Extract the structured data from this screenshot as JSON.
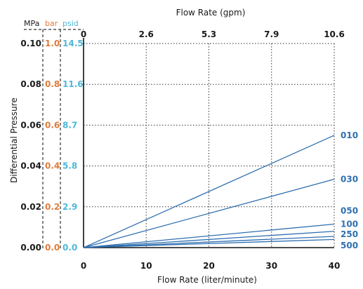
{
  "chart_data": {
    "type": "line",
    "title": "",
    "xlabel": "Flow Rate (liter/minute)",
    "x2label": "Flow Rate (gpm)",
    "ylabel": "Differential Pressure",
    "xlim": [
      0,
      40
    ],
    "ylim": [
      0,
      0.1
    ],
    "x_ticks": [
      "0",
      "10",
      "20",
      "30",
      "40"
    ],
    "x_ticks_values": [
      0,
      10,
      20,
      30,
      40
    ],
    "x2_ticks": [
      "0",
      "2.6",
      "5.3",
      "7.9",
      "10.6"
    ],
    "unit_headers": {
      "mpa": "MPa",
      "bar": "bar",
      "psid": "psid"
    },
    "y_ticks_values": [
      0,
      0.02,
      0.04,
      0.06,
      0.08,
      0.1
    ],
    "y_ticks_mpa": [
      "0.00",
      "0.02",
      "0.04",
      "0.06",
      "0.08",
      "0.10"
    ],
    "y_ticks_bar": [
      "0.0",
      "0.2",
      "0.4",
      "0.6",
      "0.8",
      "1.0"
    ],
    "y_ticks_psid": [
      "0.0",
      "2.9",
      "5.8",
      "8.7",
      "11.6",
      "14.5"
    ],
    "grid": true,
    "series": [
      {
        "name": "010",
        "x": [
          0,
          40
        ],
        "y": [
          0,
          0.055
        ]
      },
      {
        "name": "030",
        "x": [
          0,
          40
        ],
        "y": [
          0,
          0.0335
        ]
      },
      {
        "name": "050",
        "x": [
          0,
          40
        ],
        "y": [
          0,
          0.0115
        ]
      },
      {
        "name": "100",
        "x": [
          0,
          40
        ],
        "y": [
          0,
          0.008
        ]
      },
      {
        "name": "250",
        "x": [
          0,
          40
        ],
        "y": [
          0,
          0.0055
        ]
      },
      {
        "name": "500",
        "x": [
          0,
          40
        ],
        "y": [
          0,
          0.004
        ]
      }
    ],
    "series_label_values": [
      0.055,
      0.0335,
      0.018,
      0.0115,
      0.0065,
      0.001
    ],
    "colors": {
      "line": "#2f6fb0",
      "bar": "#e07b39",
      "psid": "#4db8d8",
      "grid": "#333333"
    }
  }
}
